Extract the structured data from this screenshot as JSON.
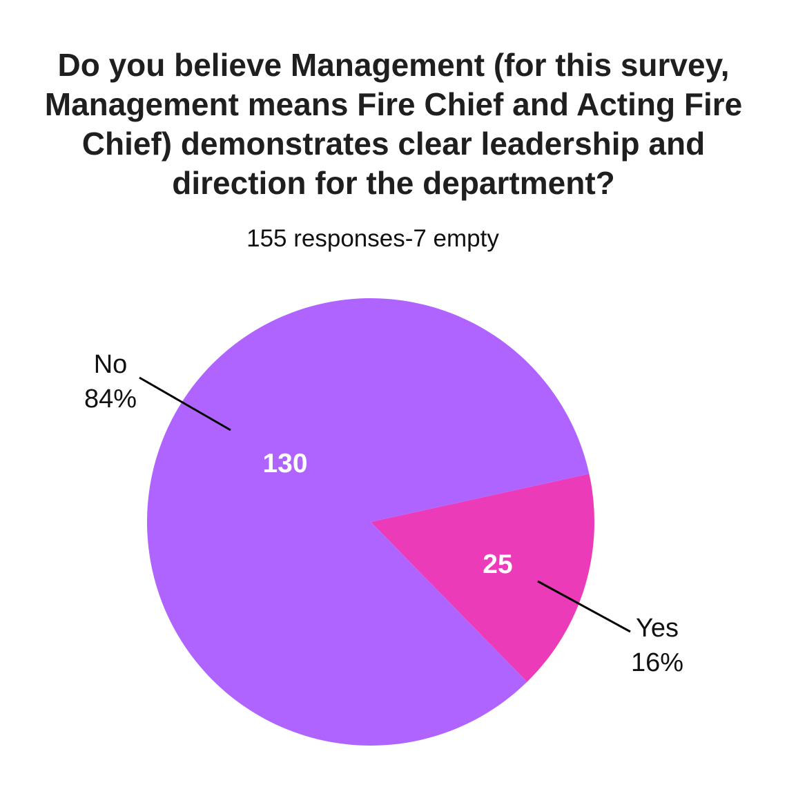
{
  "chart_data": {
    "type": "pie",
    "title": "Do you believe Management (for this survey, Management means Fire Chief and Acting Fire Chief) demonstrates clear leadership and direction for the department?",
    "subtitle": "155 responses-7 empty",
    "slices": [
      {
        "label": "No",
        "value": 130,
        "percent_label": "84%",
        "color": "#b064ff"
      },
      {
        "label": "Yes",
        "value": 25,
        "percent_label": "16%",
        "color": "#ec3bb8"
      }
    ],
    "value_labels_shown": true,
    "legend": "none"
  }
}
